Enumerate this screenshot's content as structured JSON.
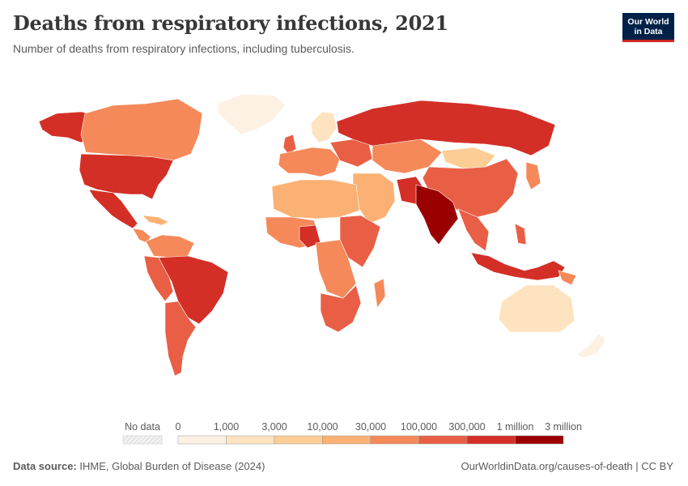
{
  "header": {
    "title": "Deaths from respiratory infections, 2021",
    "subtitle": "Number of deaths from respiratory infections, including tuberculosis."
  },
  "logo": {
    "line1": "Our World",
    "line2": "in Data"
  },
  "legend": {
    "no_data_label": "No data",
    "bins": [
      "0",
      "1,000",
      "3,000",
      "10,000",
      "30,000",
      "100,000",
      "300,000",
      "1 million",
      "3 million"
    ],
    "colors": [
      "#fdf1e4",
      "#fde3c0",
      "#fcce96",
      "#fbb173",
      "#f5895a",
      "#e85f45",
      "#d32f27",
      "#9b0000"
    ]
  },
  "footer": {
    "source_label": "Data source:",
    "source_text": "IHME, Global Burden of Disease (2024)",
    "url_text": "OurWorldinData.org/causes-of-death | CC BY"
  }
}
